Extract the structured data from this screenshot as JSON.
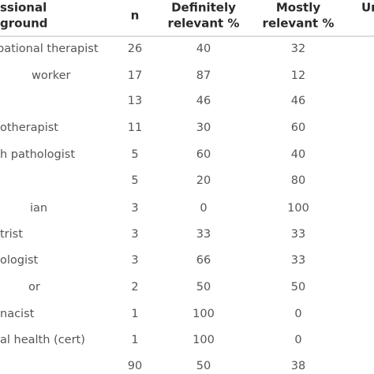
{
  "table": {
    "header": [
      [
        "ssional",
        "ground"
      ],
      [
        "n"
      ],
      [
        "Definitely",
        "relevant %"
      ],
      [
        "Mostly",
        "relevant %"
      ],
      [
        "Ur"
      ]
    ],
    "rows": [
      [
        "pational therapist",
        "26",
        "40",
        "32"
      ],
      [
        "worker",
        "17",
        "87",
        "12"
      ],
      [
        null,
        "13",
        "46",
        "46"
      ],
      [
        "otherapist",
        "11",
        "30",
        "60"
      ],
      [
        "h pathologist",
        "5",
        "60",
        "40"
      ],
      [
        null,
        "5",
        "20",
        "80"
      ],
      [
        "ian",
        "3",
        "0",
        "100"
      ],
      [
        "trist",
        "3",
        "33",
        "33"
      ],
      [
        "ologist",
        "3",
        "66",
        "33"
      ],
      [
        "or",
        "2",
        "50",
        "50"
      ],
      [
        "nacist",
        "1",
        "100",
        "0"
      ],
      [
        "al health (cert)",
        "1",
        "100",
        "0"
      ],
      [
        null,
        "90",
        "50",
        "38"
      ]
    ]
  }
}
